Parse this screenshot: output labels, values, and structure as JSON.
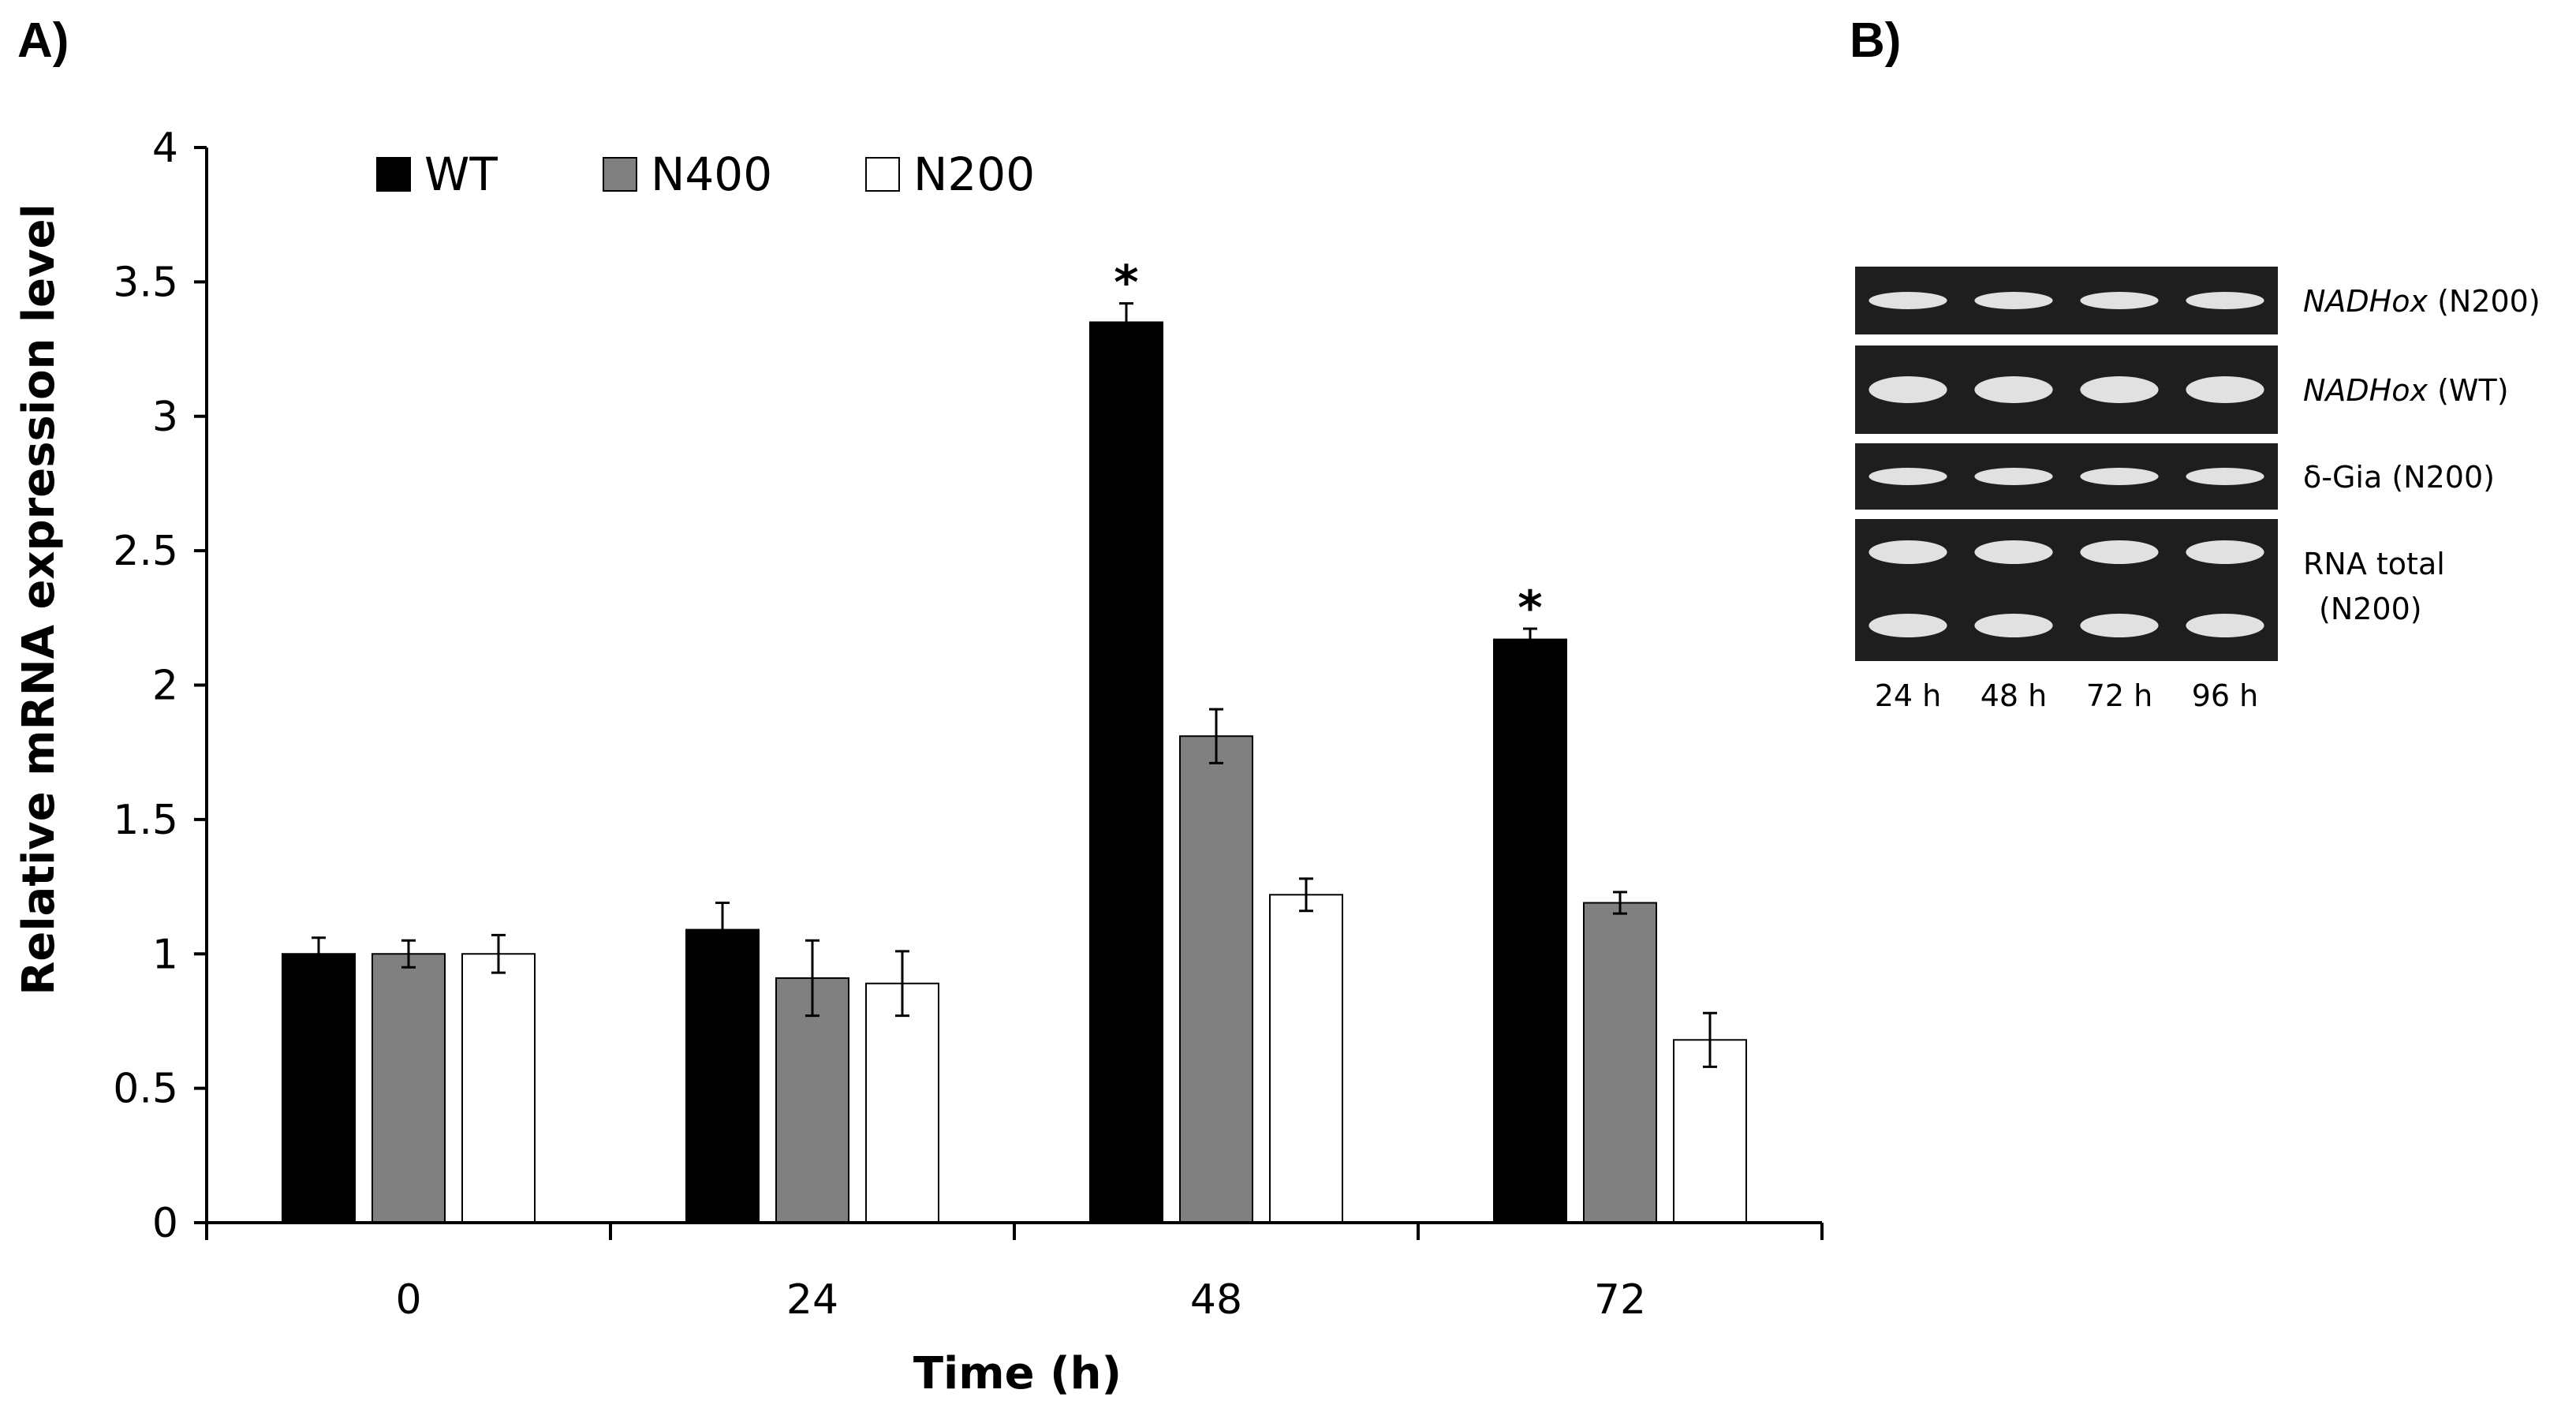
{
  "panels": {
    "a": "A)",
    "b": "B)"
  },
  "colors": {
    "WT": "#000000",
    "N400": "#808080",
    "N200": "#ffffff",
    "gel_bg": "#1e1e1e",
    "band": "#f2f2f2"
  },
  "chart_data": {
    "type": "bar",
    "title": "",
    "xlabel": "Time (h)",
    "ylabel": "Relative mRNA expression level",
    "categories": [
      "0",
      "24",
      "48",
      "72"
    ],
    "ylim": [
      0,
      4
    ],
    "yticks": [
      "0",
      "0.5",
      "1",
      "1.5",
      "2",
      "2.5",
      "3",
      "3.5",
      "4"
    ],
    "legend_position": "top-left",
    "series": [
      {
        "name": "WT",
        "values": [
          1.0,
          1.09,
          3.35,
          2.17
        ],
        "errors": [
          0.06,
          0.1,
          0.07,
          0.04
        ],
        "significant": [
          false,
          false,
          true,
          true
        ]
      },
      {
        "name": "N400",
        "values": [
          1.0,
          0.91,
          1.81,
          1.19
        ],
        "errors": [
          0.05,
          0.14,
          0.1,
          0.04
        ],
        "significant": [
          false,
          false,
          false,
          false
        ]
      },
      {
        "name": "N200",
        "values": [
          1.0,
          0.89,
          1.22,
          0.68
        ],
        "errors": [
          0.07,
          0.12,
          0.06,
          0.1
        ],
        "significant": [
          false,
          false,
          false,
          false
        ]
      }
    ],
    "significance_marker": "*"
  },
  "gel": {
    "lanes": [
      "24 h",
      "48 h",
      "72 h",
      "96 h"
    ],
    "rows": [
      {
        "gene": "NADHox",
        "suffix": " (N200)",
        "italic": true
      },
      {
        "gene": "NADHox",
        "suffix": " (WT)",
        "italic": true
      },
      {
        "gene": "δ-Gia",
        "suffix": " (N200)",
        "italic": false
      },
      {
        "gene": "RNA total",
        "suffix": "(N200)",
        "italic": false,
        "two_line": true
      }
    ]
  }
}
